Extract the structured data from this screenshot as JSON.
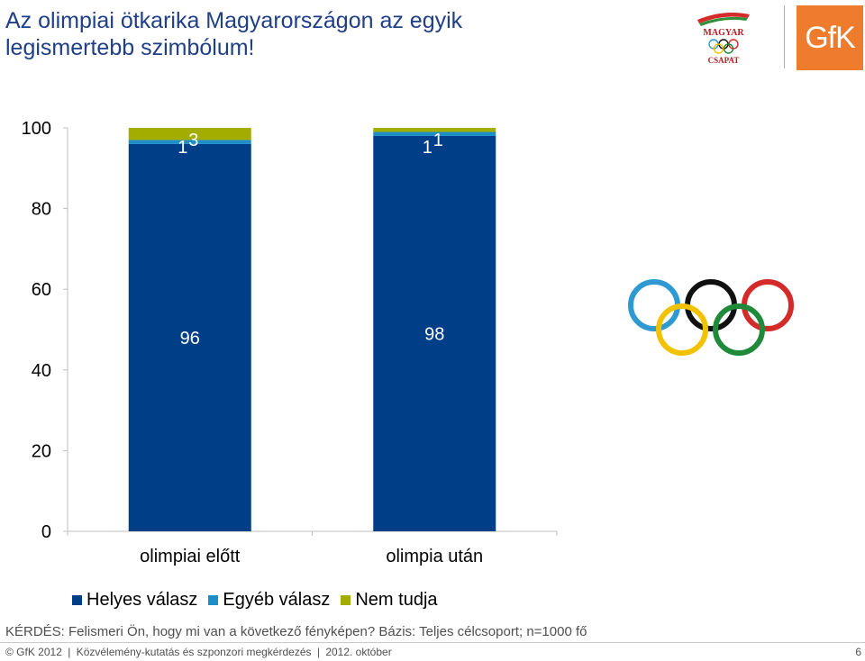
{
  "slide": {
    "title": "Az olimpiai ötkarika Magyarországon az egyik legismertebb szimbólum!",
    "question": "KÉRDÉS: Felismeri Ön, hogy mi van a következő fényképen? Bázis: Teljes célcsoport; n=1000 fő",
    "logos": {
      "magyar_csapat": [
        "MAGYAR",
        "CSAPAT"
      ],
      "gfk": "GfK"
    }
  },
  "footer": {
    "copyright": "© GfK 2012",
    "sep1": "|",
    "project": "Közvélemény-kutatás és szponzori megkérdezés",
    "sep2": "|",
    "date": "2012. október",
    "page": "6"
  },
  "chart_data": {
    "type": "bar",
    "stacked": true,
    "categories": [
      "olimpiai előtt",
      "olimpia után"
    ],
    "series": [
      {
        "name": "Helyes válasz",
        "values": [
          96,
          98
        ],
        "color": "#003f87",
        "labels": [
          "96",
          "98"
        ]
      },
      {
        "name": "Egyéb válasz",
        "values": [
          1,
          1
        ],
        "color": "#1e8ec9",
        "labels": [
          "1",
          "1"
        ]
      },
      {
        "name": "Nem tudja",
        "values": [
          3,
          1
        ],
        "color": "#a3ad00",
        "labels": [
          "3",
          "1"
        ]
      }
    ],
    "yticks": [
      0,
      20,
      40,
      60,
      80,
      100
    ],
    "ylim": [
      0,
      100
    ],
    "grid": false,
    "legend": "bottom"
  },
  "image": {
    "subject": "olympic-rings",
    "ring_colors": [
      "#2e9ad1",
      "#f2c200",
      "#111111",
      "#1e8a3a",
      "#d42a2a"
    ]
  }
}
